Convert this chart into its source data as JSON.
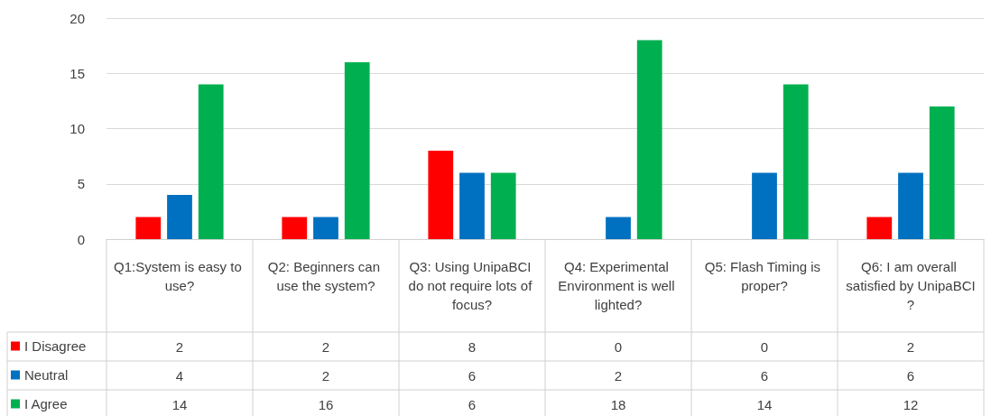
{
  "chart_data": {
    "type": "bar",
    "categories": [
      "Q1:System is easy to use?",
      "Q2: Beginners can use the system?",
      "Q3: Using UnipaBCI do not require lots of focus?",
      "Q4: Experimental Environment is well lighted?",
      "Q5: Flash Timing is proper?",
      "Q6: I am overall satisfied by UnipaBCI?"
    ],
    "series": [
      {
        "name": "I Disagree",
        "color": "#ff0000",
        "values": [
          2,
          2,
          8,
          0,
          0,
          2
        ]
      },
      {
        "name": "Neutral",
        "color": "#0070c0",
        "values": [
          4,
          2,
          6,
          2,
          6,
          6
        ]
      },
      {
        "name": "I Agree",
        "color": "#00b050",
        "values": [
          14,
          16,
          6,
          18,
          14,
          12
        ]
      }
    ],
    "ylim": [
      0,
      20
    ],
    "yticks": [
      0,
      5,
      10,
      15,
      20
    ],
    "grid": "y",
    "legend": "bottom left",
    "data_labels": true
  }
}
